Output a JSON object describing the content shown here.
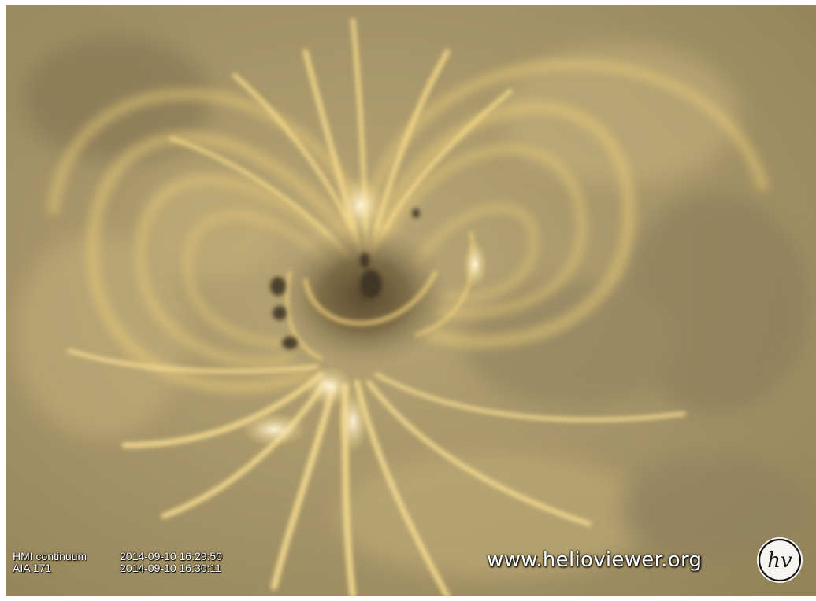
{
  "overlay": {
    "layers": [
      "HMI continuum",
      "AIA 171"
    ],
    "timestamps": [
      "2014-09-10 16:29:50",
      "2014-09-10 16:30:11"
    ],
    "watermark": "www.helioviewer.org",
    "logo_text": "hv"
  },
  "colors": {
    "background_tone": "#9a8c68",
    "loop_highlight": "#f2d27a",
    "core_white": "#fff6dc",
    "dark_umbra": "#3a3020"
  },
  "icons": {
    "logo": "helioviewer-logo-icon"
  }
}
